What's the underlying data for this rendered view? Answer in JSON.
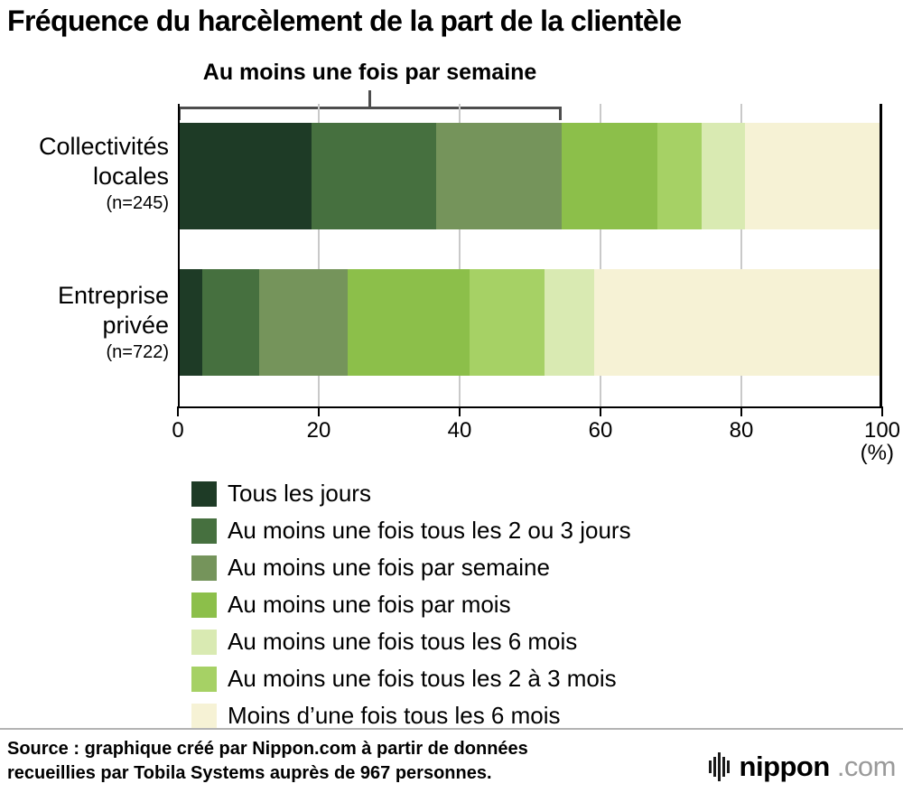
{
  "chart_data": {
    "type": "bar",
    "orientation": "horizontal",
    "stacked": true,
    "title": "Fréquence du harcèlement de la part de la clientèle",
    "x_unit": "(%)",
    "xlim": [
      0,
      100
    ],
    "x_ticks": [
      0,
      20,
      40,
      60,
      80,
      100
    ],
    "grid": true,
    "legend_position": "below",
    "annotation": {
      "label": "Au moins une fois par semaine",
      "from_pct": 0,
      "to_pct": 54.5
    },
    "categories": [
      {
        "lines": [
          "Collectivités",
          "locales"
        ],
        "n_label": "(n=245)"
      },
      {
        "lines": [
          "Entreprise",
          "privée"
        ],
        "n_label": "(n=722)"
      }
    ],
    "series": [
      {
        "name": "Tous les jours",
        "color": "#1e3b26",
        "values": [
          19.0,
          3.5
        ]
      },
      {
        "name": "Au moins une fois tous les 2 ou 3 jours",
        "color": "#46703f",
        "values": [
          17.7,
          8.0
        ]
      },
      {
        "name": "Au moins une fois par semaine",
        "color": "#75945b",
        "values": [
          17.8,
          12.6
        ]
      },
      {
        "name": "Au moins une fois par mois",
        "color": "#8cbf4a",
        "values": [
          13.6,
          17.3
        ]
      },
      {
        "name": "Au moins une fois tous les 2 à 3 mois",
        "color": "#a6d165",
        "values": [
          6.3,
          10.6
        ]
      },
      {
        "name": "Au moins une fois tous les 6 mois",
        "color": "#d9eab2",
        "values": [
          6.1,
          7.1
        ]
      },
      {
        "name": "Moins d’une fois tous les 6 mois",
        "color": "#f6f2d5",
        "values": [
          19.5,
          40.9
        ]
      }
    ],
    "legend": [
      {
        "label": "Tous les jours",
        "color": "#1e3b26"
      },
      {
        "label": "Au moins une fois tous les 2 ou 3 jours",
        "color": "#46703f"
      },
      {
        "label": "Au moins une fois par semaine",
        "color": "#75945b"
      },
      {
        "label": "Au moins une fois par mois",
        "color": "#8cbf4a"
      },
      {
        "label": "Au moins une fois tous les 6 mois",
        "color": "#d9eab2"
      },
      {
        "label": "Au moins une fois tous les 2 à 3 mois",
        "color": "#a6d165"
      },
      {
        "label": "Moins d’une fois tous les 6 mois",
        "color": "#f6f2d5"
      }
    ]
  },
  "footer": {
    "source_lines": [
      "Source : graphique créé par Nippon.com à partir de données",
      "recueillies par Tobila Systems auprès de 967 personnes."
    ],
    "logo": {
      "name": "nippon",
      "suffix": ".com"
    }
  }
}
